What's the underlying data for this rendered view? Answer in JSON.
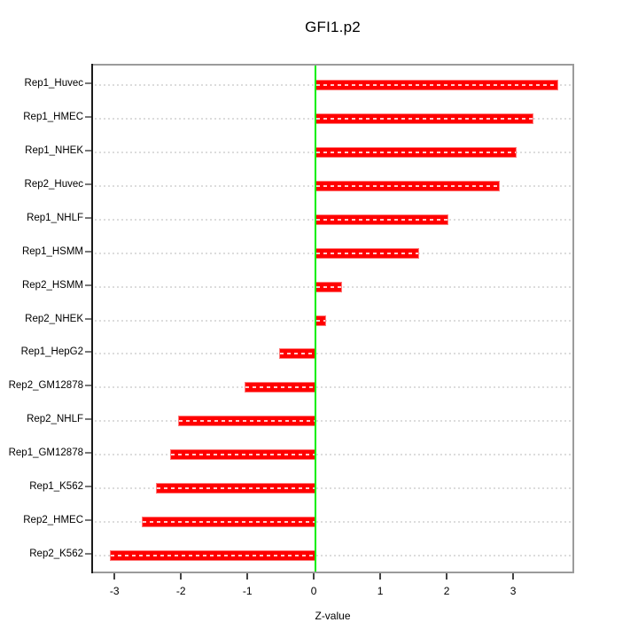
{
  "chart_data": {
    "type": "bar",
    "orientation": "horizontal",
    "title": "GFI1.p2",
    "xlabel": "Z-value",
    "categories": [
      "Rep1_Huvec",
      "Rep1_HMEC",
      "Rep1_NHEK",
      "Rep2_Huvec",
      "Rep1_NHLF",
      "Rep1_HSMM",
      "Rep2_HSMM",
      "Rep2_NHEK",
      "Rep1_HepG2",
      "Rep2_GM12878",
      "Rep2_NHLF",
      "Rep1_GM12878",
      "Rep1_K562",
      "Rep2_HMEC",
      "Rep2_K562"
    ],
    "values": [
      3.65,
      3.28,
      3.02,
      2.77,
      2.0,
      1.56,
      0.4,
      0.16,
      -0.55,
      -1.07,
      -2.07,
      -2.19,
      -2.4,
      -2.61,
      -3.09
    ],
    "x_ticks": [
      -3,
      -2,
      -1,
      0,
      1,
      2,
      3
    ],
    "xlim": [
      -3.35,
      3.92
    ],
    "grid": "horizontal dotted line per category, on",
    "legend": "none",
    "bar_color": "#ff0000",
    "bar_edge_color": "#ff7b7b",
    "zero_line_color": "#00ee00",
    "gridline_color": "#dcdcdc",
    "frame_color": "#9b9b9b",
    "axis_line_color": "#1a1a1a"
  }
}
